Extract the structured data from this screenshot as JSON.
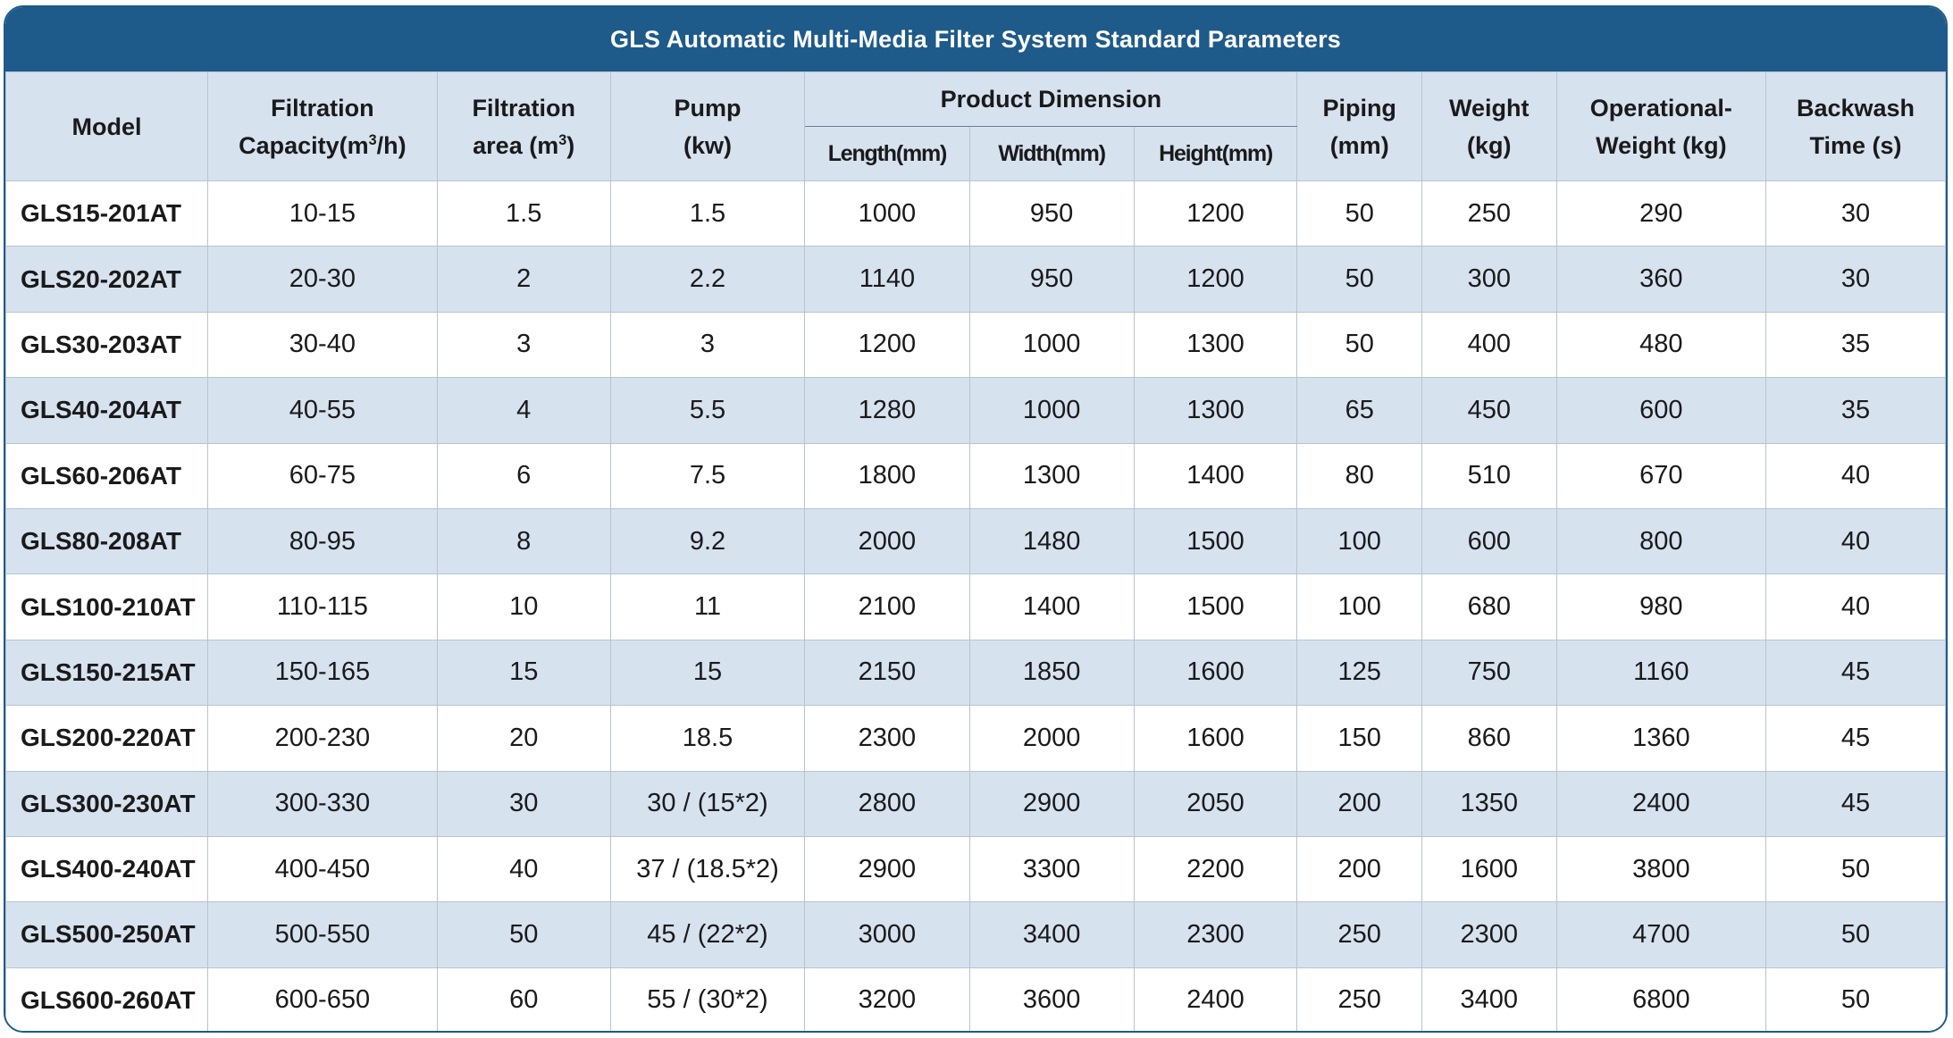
{
  "title": "GLS Automatic Multi-Media Filter System Standard Parameters",
  "headers": {
    "model": "Model",
    "capacity_line1": "Filtration",
    "capacity_line2": "Capacity(m",
    "capacity_sup": "3",
    "capacity_line2_end": "/h)",
    "area_line1": "Filtration",
    "area_line2": "area (m",
    "area_sup": "3",
    "area_line2_end": ")",
    "pump_line1": "Pump",
    "pump_line2": "(kw)",
    "dimension_group": "Product Dimension",
    "length": "Length(mm)",
    "width": "Width(mm)",
    "height": "Height(mm)",
    "piping_line1": "Piping",
    "piping_line2": "(mm)",
    "weight_line1": "Weight",
    "weight_line2": "(kg)",
    "op_weight_line1": "Operational-",
    "op_weight_line2": "Weight (kg)",
    "backwash_line1": "Backwash",
    "backwash_line2": "Time (s)"
  },
  "rows": [
    {
      "model": "GLS15-201AT",
      "capacity": "10-15",
      "area": "1.5",
      "pump": "1.5",
      "length": "1000",
      "width": "950",
      "height": "1200",
      "piping": "50",
      "weight": "250",
      "op_weight": "290",
      "backwash": "30"
    },
    {
      "model": "GLS20-202AT",
      "capacity": "20-30",
      "area": "2",
      "pump": "2.2",
      "length": "1140",
      "width": "950",
      "height": "1200",
      "piping": "50",
      "weight": "300",
      "op_weight": "360",
      "backwash": "30"
    },
    {
      "model": "GLS30-203AT",
      "capacity": "30-40",
      "area": "3",
      "pump": "3",
      "length": "1200",
      "width": "1000",
      "height": "1300",
      "piping": "50",
      "weight": "400",
      "op_weight": "480",
      "backwash": "35"
    },
    {
      "model": "GLS40-204AT",
      "capacity": "40-55",
      "area": "4",
      "pump": "5.5",
      "length": "1280",
      "width": "1000",
      "height": "1300",
      "piping": "65",
      "weight": "450",
      "op_weight": "600",
      "backwash": "35"
    },
    {
      "model": "GLS60-206AT",
      "capacity": "60-75",
      "area": "6",
      "pump": "7.5",
      "length": "1800",
      "width": "1300",
      "height": "1400",
      "piping": "80",
      "weight": "510",
      "op_weight": "670",
      "backwash": "40"
    },
    {
      "model": "GLS80-208AT",
      "capacity": "80-95",
      "area": "8",
      "pump": "9.2",
      "length": "2000",
      "width": "1480",
      "height": "1500",
      "piping": "100",
      "weight": "600",
      "op_weight": "800",
      "backwash": "40"
    },
    {
      "model": "GLS100-210AT",
      "capacity": "110-115",
      "area": "10",
      "pump": "11",
      "length": "2100",
      "width": "1400",
      "height": "1500",
      "piping": "100",
      "weight": "680",
      "op_weight": "980",
      "backwash": "40"
    },
    {
      "model": "GLS150-215AT",
      "capacity": "150-165",
      "area": "15",
      "pump": "15",
      "length": "2150",
      "width": "1850",
      "height": "1600",
      "piping": "125",
      "weight": "750",
      "op_weight": "1160",
      "backwash": "45"
    },
    {
      "model": "GLS200-220AT",
      "capacity": "200-230",
      "area": "20",
      "pump": "18.5",
      "length": "2300",
      "width": "2000",
      "height": "1600",
      "piping": "150",
      "weight": "860",
      "op_weight": "1360",
      "backwash": "45"
    },
    {
      "model": "GLS300-230AT",
      "capacity": "300-330",
      "area": "30",
      "pump": "30 / (15*2)",
      "length": "2800",
      "width": "2900",
      "height": "2050",
      "piping": "200",
      "weight": "1350",
      "op_weight": "2400",
      "backwash": "45"
    },
    {
      "model": "GLS400-240AT",
      "capacity": "400-450",
      "area": "40",
      "pump": "37 / (18.5*2)",
      "length": "2900",
      "width": "3300",
      "height": "2200",
      "piping": "200",
      "weight": "1600",
      "op_weight": "3800",
      "backwash": "50"
    },
    {
      "model": "GLS500-250AT",
      "capacity": "500-550",
      "area": "50",
      "pump": "45 / (22*2)",
      "length": "3000",
      "width": "3400",
      "height": "2300",
      "piping": "250",
      "weight": "2300",
      "op_weight": "4700",
      "backwash": "50"
    },
    {
      "model": "GLS600-260AT",
      "capacity": "600-650",
      "area": "60",
      "pump": "55 / (30*2)",
      "length": "3200",
      "width": "3600",
      "height": "2400",
      "piping": "250",
      "weight": "3400",
      "op_weight": "6800",
      "backwash": "50"
    }
  ]
}
